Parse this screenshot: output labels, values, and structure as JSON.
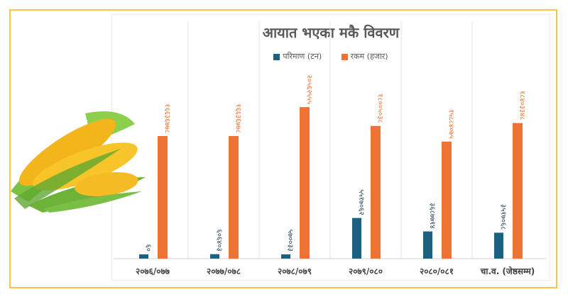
{
  "chart_data": {
    "type": "bar",
    "title": "आयात भएका मकै विवरण",
    "categories": [
      "२०७६/०७७",
      "२०७७/०७८",
      "२०७८/०७९",
      "२०७९/०८०",
      "२०८०/०८१",
      "चा.व. (जेष्ठसम्म)"
    ],
    "series": [
      {
        "name": "परिमाण (टन)",
        "color": "#1f5f7f",
        "labels": [
          "६०",
          "६०६४०३",
          "५७००३३",
          "५५१७०६२",
          "३६८७७१४",
          "३५१७०६८"
        ]
      },
      {
        "name": "रकम (हजार)",
        "color": "#ed7234",
        "labels": [
          "१६६३६७७८",
          "१६६३६७७८",
          "२०५६२५५५",
          "१८००५०३८",
          "१५८८४०७५",
          "१८४०३३४८"
        ]
      }
    ],
    "ylim": [
      0,
      25000000
    ],
    "legend": "top",
    "grid": "vertical category separators",
    "data_labels": "rotated vertical"
  },
  "decor": {
    "image": "corn-cobs",
    "frame_color": "#f5c842"
  }
}
